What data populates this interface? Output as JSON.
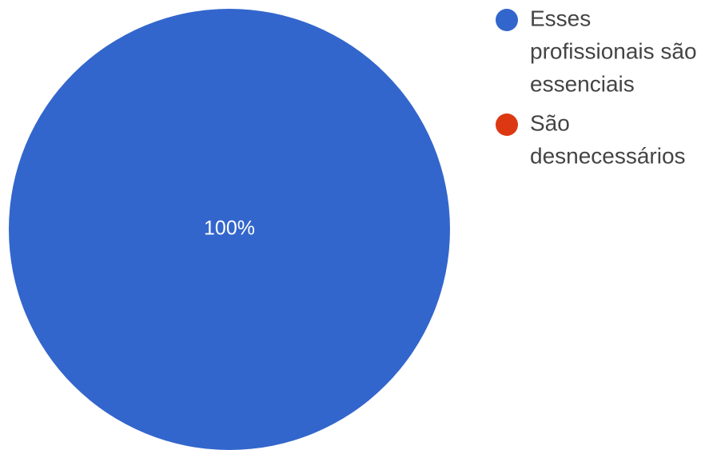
{
  "chart_data": {
    "type": "pie",
    "slices": [
      {
        "label": "Esses profissionais são essenciais",
        "value": 100,
        "color": "#3366cc",
        "display": "100%"
      },
      {
        "label": "São desnecessários",
        "value": 0,
        "color": "#dc3912",
        "display": ""
      }
    ],
    "legend": {
      "position": "right",
      "entries": [
        {
          "lines": [
            "Esses",
            "profissionais são",
            "essenciais"
          ],
          "color": "#3366cc"
        },
        {
          "lines": [
            "São",
            "desnecessários"
          ],
          "color": "#dc3912"
        }
      ]
    }
  }
}
